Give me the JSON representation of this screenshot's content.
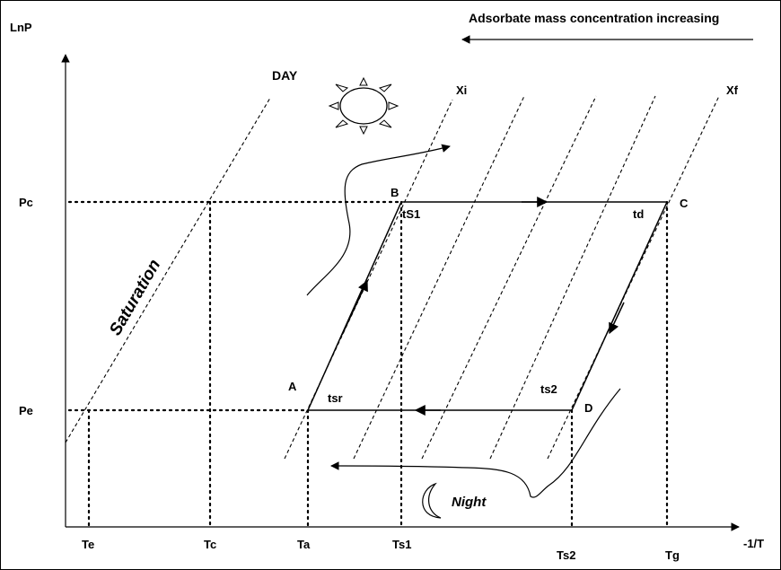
{
  "diagram": {
    "header_text": "Adsorbate mass concentration increasing",
    "axis": {
      "y_label": "LnP",
      "x_label": "-1/T"
    },
    "y_ticks": {
      "pc": "Pc",
      "pe": "Pe"
    },
    "x_ticks": {
      "te": "Te",
      "tc": "Tc",
      "ta": "Ta",
      "ts1": "Ts1",
      "ts2": "Ts2",
      "tg": "Tg"
    },
    "isostere_labels": {
      "xi": "Xi",
      "xf": "Xf"
    },
    "day_label": "DAY",
    "night_label": "Night",
    "saturation_label": "Saturation",
    "points": {
      "a": "A",
      "b": "B",
      "c": "C",
      "d": "D"
    },
    "process_labels": {
      "ts1": "tS1",
      "td": "td",
      "ts2": "ts2",
      "tsr": "tsr"
    },
    "icons": {
      "sun": "sun-icon",
      "moon": "crescent-moon-icon"
    }
  }
}
